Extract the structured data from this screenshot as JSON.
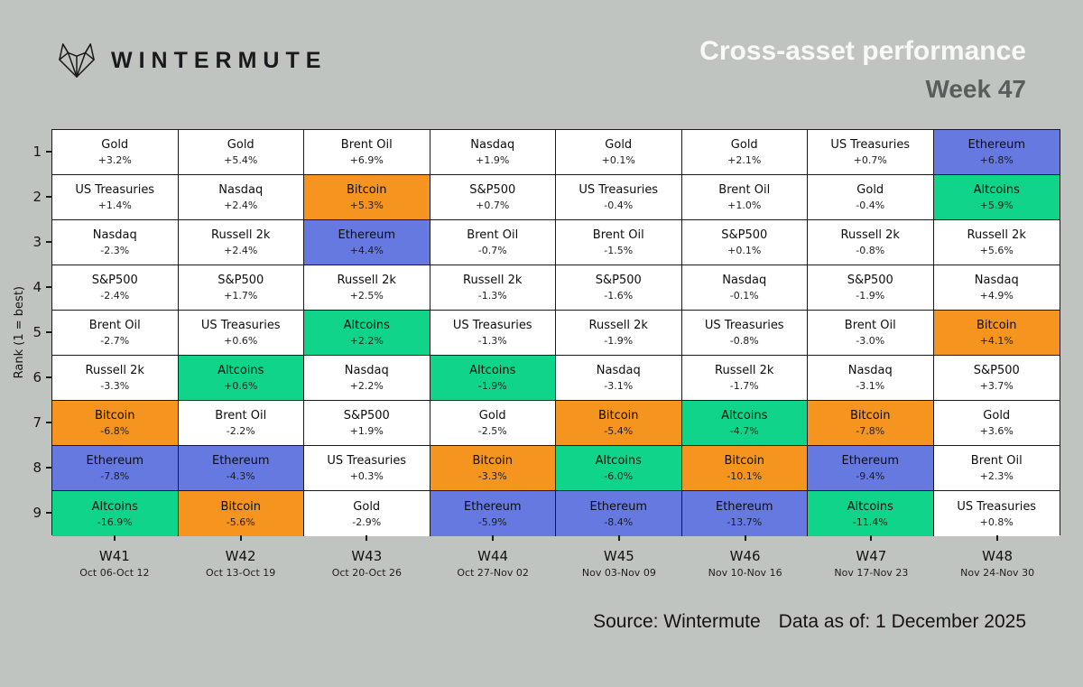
{
  "header": {
    "brand": "WINTERMUTE",
    "title": "Cross-asset performance",
    "subtitle": "Week 47"
  },
  "footer": {
    "source": "Source: Wintermute",
    "data_as_of": "Data as of: 1 December 2025"
  },
  "chart_data": {
    "type": "table",
    "title": "Cross-asset performance",
    "subtitle": "Week 47",
    "ylabel": "Rank (1 = best)",
    "ranks": [
      1,
      2,
      3,
      4,
      5,
      6,
      7,
      8,
      9
    ],
    "highlight_colors": {
      "Bitcoin": "#F5941F",
      "Ethereum": "#6679E0",
      "Altcoins": "#0FD489",
      "default": "#FFFFFF"
    },
    "background_color": "#C0C4C1",
    "weeks": [
      {
        "label": "W41",
        "dates": "Oct 06-Oct 12",
        "cells": [
          {
            "asset": "Gold",
            "change": "+3.2%"
          },
          {
            "asset": "US Treasuries",
            "change": "+1.4%"
          },
          {
            "asset": "Nasdaq",
            "change": "-2.3%"
          },
          {
            "asset": "S&P500",
            "change": "-2.4%"
          },
          {
            "asset": "Brent Oil",
            "change": "-2.7%"
          },
          {
            "asset": "Russell 2k",
            "change": "-3.3%"
          },
          {
            "asset": "Bitcoin",
            "change": "-6.8%"
          },
          {
            "asset": "Ethereum",
            "change": "-7.8%"
          },
          {
            "asset": "Altcoins",
            "change": "-16.9%"
          }
        ]
      },
      {
        "label": "W42",
        "dates": "Oct 13-Oct 19",
        "cells": [
          {
            "asset": "Gold",
            "change": "+5.4%"
          },
          {
            "asset": "Nasdaq",
            "change": "+2.4%"
          },
          {
            "asset": "Russell 2k",
            "change": "+2.4%"
          },
          {
            "asset": "S&P500",
            "change": "+1.7%"
          },
          {
            "asset": "US Treasuries",
            "change": "+0.6%"
          },
          {
            "asset": "Altcoins",
            "change": "+0.6%"
          },
          {
            "asset": "Brent Oil",
            "change": "-2.2%"
          },
          {
            "asset": "Ethereum",
            "change": "-4.3%"
          },
          {
            "asset": "Bitcoin",
            "change": "-5.6%"
          }
        ]
      },
      {
        "label": "W43",
        "dates": "Oct 20-Oct 26",
        "cells": [
          {
            "asset": "Brent Oil",
            "change": "+6.9%"
          },
          {
            "asset": "Bitcoin",
            "change": "+5.3%"
          },
          {
            "asset": "Ethereum",
            "change": "+4.4%"
          },
          {
            "asset": "Russell 2k",
            "change": "+2.5%"
          },
          {
            "asset": "Altcoins",
            "change": "+2.2%"
          },
          {
            "asset": "Nasdaq",
            "change": "+2.2%"
          },
          {
            "asset": "S&P500",
            "change": "+1.9%"
          },
          {
            "asset": "US Treasuries",
            "change": "+0.3%"
          },
          {
            "asset": "Gold",
            "change": "-2.9%"
          }
        ]
      },
      {
        "label": "W44",
        "dates": "Oct 27-Nov 02",
        "cells": [
          {
            "asset": "Nasdaq",
            "change": "+1.9%"
          },
          {
            "asset": "S&P500",
            "change": "+0.7%"
          },
          {
            "asset": "Brent Oil",
            "change": "-0.7%"
          },
          {
            "asset": "Russell 2k",
            "change": "-1.3%"
          },
          {
            "asset": "US Treasuries",
            "change": "-1.3%"
          },
          {
            "asset": "Altcoins",
            "change": "-1.9%"
          },
          {
            "asset": "Gold",
            "change": "-2.5%"
          },
          {
            "asset": "Bitcoin",
            "change": "-3.3%"
          },
          {
            "asset": "Ethereum",
            "change": "-5.9%"
          }
        ]
      },
      {
        "label": "W45",
        "dates": "Nov 03-Nov 09",
        "cells": [
          {
            "asset": "Gold",
            "change": "+0.1%"
          },
          {
            "asset": "US Treasuries",
            "change": "-0.4%"
          },
          {
            "asset": "Brent Oil",
            "change": "-1.5%"
          },
          {
            "asset": "S&P500",
            "change": "-1.6%"
          },
          {
            "asset": "Russell 2k",
            "change": "-1.9%"
          },
          {
            "asset": "Nasdaq",
            "change": "-3.1%"
          },
          {
            "asset": "Bitcoin",
            "change": "-5.4%"
          },
          {
            "asset": "Altcoins",
            "change": "-6.0%"
          },
          {
            "asset": "Ethereum",
            "change": "-8.4%"
          }
        ]
      },
      {
        "label": "W46",
        "dates": "Nov 10-Nov 16",
        "cells": [
          {
            "asset": "Gold",
            "change": "+2.1%"
          },
          {
            "asset": "Brent Oil",
            "change": "+1.0%"
          },
          {
            "asset": "S&P500",
            "change": "+0.1%"
          },
          {
            "asset": "Nasdaq",
            "change": "-0.1%"
          },
          {
            "asset": "US Treasuries",
            "change": "-0.8%"
          },
          {
            "asset": "Russell 2k",
            "change": "-1.7%"
          },
          {
            "asset": "Altcoins",
            "change": "-4.7%"
          },
          {
            "asset": "Bitcoin",
            "change": "-10.1%"
          },
          {
            "asset": "Ethereum",
            "change": "-13.7%"
          }
        ]
      },
      {
        "label": "W47",
        "dates": "Nov 17-Nov 23",
        "cells": [
          {
            "asset": "US Treasuries",
            "change": "+0.7%"
          },
          {
            "asset": "Gold",
            "change": "-0.4%"
          },
          {
            "asset": "Russell 2k",
            "change": "-0.8%"
          },
          {
            "asset": "S&P500",
            "change": "-1.9%"
          },
          {
            "asset": "Brent Oil",
            "change": "-3.0%"
          },
          {
            "asset": "Nasdaq",
            "change": "-3.1%"
          },
          {
            "asset": "Bitcoin",
            "change": "-7.8%"
          },
          {
            "asset": "Ethereum",
            "change": "-9.4%"
          },
          {
            "asset": "Altcoins",
            "change": "-11.4%"
          }
        ]
      },
      {
        "label": "W48",
        "dates": "Nov 24-Nov 30",
        "cells": [
          {
            "asset": "Ethereum",
            "change": "+6.8%"
          },
          {
            "asset": "Altcoins",
            "change": "+5.9%"
          },
          {
            "asset": "Russell 2k",
            "change": "+5.6%"
          },
          {
            "asset": "Nasdaq",
            "change": "+4.9%"
          },
          {
            "asset": "Bitcoin",
            "change": "+4.1%"
          },
          {
            "asset": "S&P500",
            "change": "+3.7%"
          },
          {
            "asset": "Gold",
            "change": "+3.6%"
          },
          {
            "asset": "Brent Oil",
            "change": "+2.3%"
          },
          {
            "asset": "US Treasuries",
            "change": "+0.8%"
          }
        ]
      }
    ]
  }
}
